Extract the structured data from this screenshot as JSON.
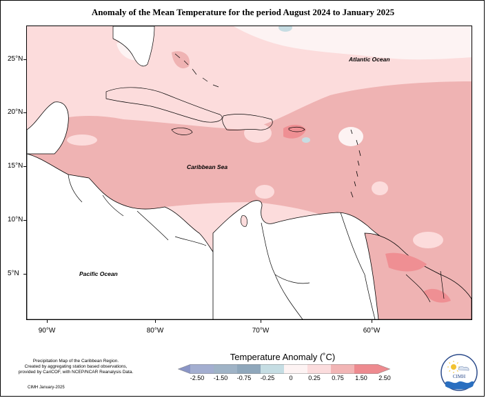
{
  "title": "Anomaly of the Mean Temperature for the period August 2024 to January 2025",
  "map": {
    "lon_range": [
      -92,
      -51
    ],
    "lat_range": [
      1.5,
      28
    ],
    "ocean_labels": {
      "atlantic": "Atlantic Ocean",
      "caribbean": "Caribbean Sea",
      "pacific": "Pacific Ocean"
    },
    "lat_ticks": [
      "25°N",
      "20°N",
      "15°N",
      "10°N",
      "5°N"
    ],
    "lon_ticks": [
      "90°W",
      "80°W",
      "70°W",
      "60°W"
    ],
    "colors": {
      "bin_025_075": "#fcdcdc",
      "bin_075_150": "#efb3b3",
      "bin_150_250": "#ef8f93",
      "bin_0_025": "#fdf3f3",
      "bin_neg": "#c7dde3",
      "land": "#ffffff"
    }
  },
  "legend": {
    "title": "Temperature Anomaly (˚C)",
    "ticks": [
      "-2.50",
      "-1.50",
      "-0.75",
      "-0.25",
      "0",
      "0.25",
      "0.75",
      "1.50",
      "2.50"
    ],
    "colors": [
      "#8a95c6",
      "#a3aed0",
      "#9fb3c6",
      "#c5dde3",
      "#fdf3f3",
      "#fbdcdd",
      "#f2b5b5",
      "#ee8a8f"
    ]
  },
  "credit": {
    "lines": [
      "Precipitation Map of the Caribbean Region.",
      "Created by aggregating station based observations,",
      "provided by CariCOF, with NCEP/NCAR Reanalysis Data."
    ],
    "date": "CIMH January-2025"
  },
  "logo": {
    "text": "CIMH"
  }
}
